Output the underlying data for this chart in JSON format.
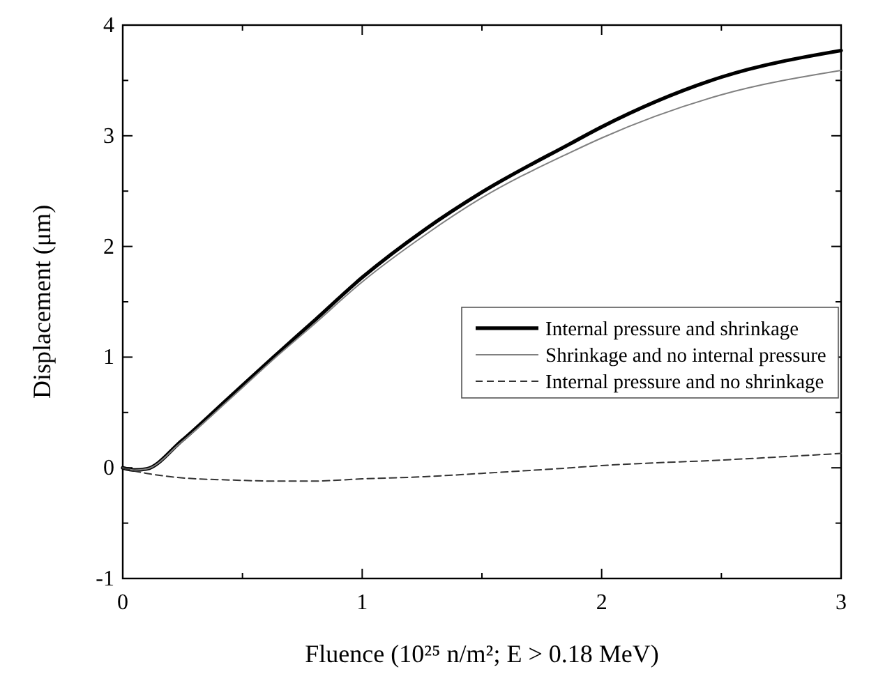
{
  "chart_data": {
    "type": "line",
    "xlabel": "Fluence (10²⁵ n/m²; E > 0.18 MeV)",
    "ylabel": "Displacement (μm)",
    "x": [
      0,
      0.05,
      0.1,
      0.244,
      0.447,
      0.65,
      0.79,
      1,
      1.26,
      1.5,
      1.87,
      2,
      2.5,
      3
    ],
    "series": [
      {
        "name": "Internal pressure and shrinkage",
        "color": "#000000",
        "line_style": "solid",
        "values": [
          0,
          -0.02,
          -0.01,
          0.24,
          0.64,
          1.04,
          1.31,
          1.72,
          2.15,
          2.49,
          2.93,
          3.08,
          3.53,
          3.77
        ]
      },
      {
        "name": "Shrinkage and no internal pressure",
        "color": "#808080",
        "line_style": "solid",
        "values": [
          0,
          -0.02,
          -0.01,
          0.23,
          0.62,
          1.02,
          1.28,
          1.68,
          2.1,
          2.44,
          2.85,
          2.98,
          3.37,
          3.59
        ]
      },
      {
        "name": "Internal pressure and no shrinkage",
        "color": "#333333",
        "line_style": "dashed",
        "values": [
          0,
          -0.03,
          -0.05,
          -0.09,
          -0.11,
          -0.12,
          -0.12,
          -0.1,
          -0.08,
          -0.05,
          0,
          0.02,
          0.07,
          0.13
        ]
      }
    ],
    "xlim": [
      0,
      3
    ],
    "xticks": [
      0,
      {
        "value": 0.5,
        "label": null
      },
      1,
      {
        "value": 1.5,
        "label": null
      },
      2,
      {
        "value": 2.5,
        "label": null
      },
      3
    ],
    "ylim": [
      -1,
      4
    ],
    "yticks": [
      -1,
      {
        "value": -0.5,
        "label": null
      },
      0,
      {
        "value": 0.5,
        "label": null
      },
      1,
      {
        "value": 1.5,
        "label": null
      },
      2,
      {
        "value": 2.5,
        "label": null
      },
      3,
      {
        "value": 3.5,
        "label": null
      },
      4
    ],
    "legend": "right",
    "grid": false
  }
}
